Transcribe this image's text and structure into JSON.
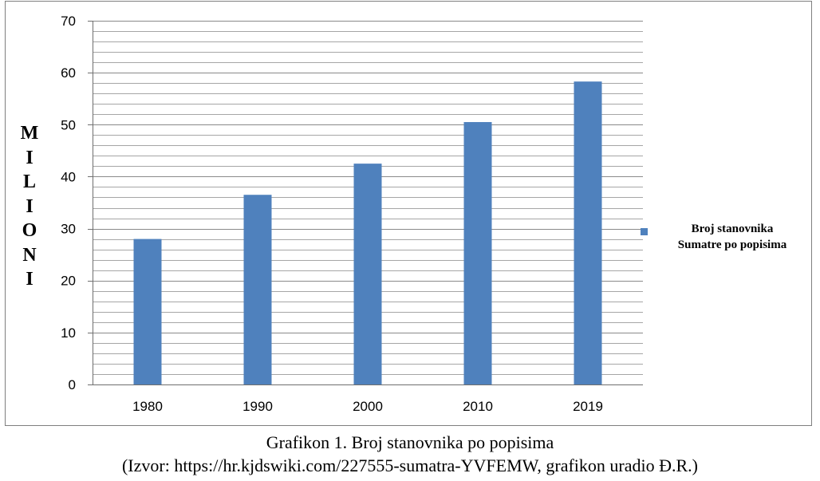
{
  "chart_data": {
    "type": "bar",
    "categories": [
      "1980",
      "1990",
      "2000",
      "2010",
      "2019"
    ],
    "series": [
      {
        "name": "Broj stanovnika Sumatre po popisima",
        "values": [
          28,
          36.5,
          42.5,
          50.5,
          58.3
        ]
      }
    ],
    "ylabel": "MILIONI",
    "ylim": [
      0,
      70
    ],
    "yticks": [
      "0",
      "10",
      "20",
      "30",
      "40",
      "50",
      "60",
      "70"
    ],
    "minor_gridlines_step": 2,
    "grid": true,
    "legend_position": "right",
    "bar_color": "#4f81bd"
  },
  "legend": {
    "line1": "Broj stanovnika",
    "line2": "Sumatre po popisima"
  },
  "ylabel_letters": [
    "M",
    "I",
    "L",
    "I",
    "O",
    "N",
    "I"
  ],
  "caption": {
    "title": "Grafikon 1. Broj stanovnika po popisima",
    "source": "(Izvor: https://hr.kjdswiki.com/227555-sumatra-YVFEMW, grafikon uradio Đ.R.)"
  }
}
